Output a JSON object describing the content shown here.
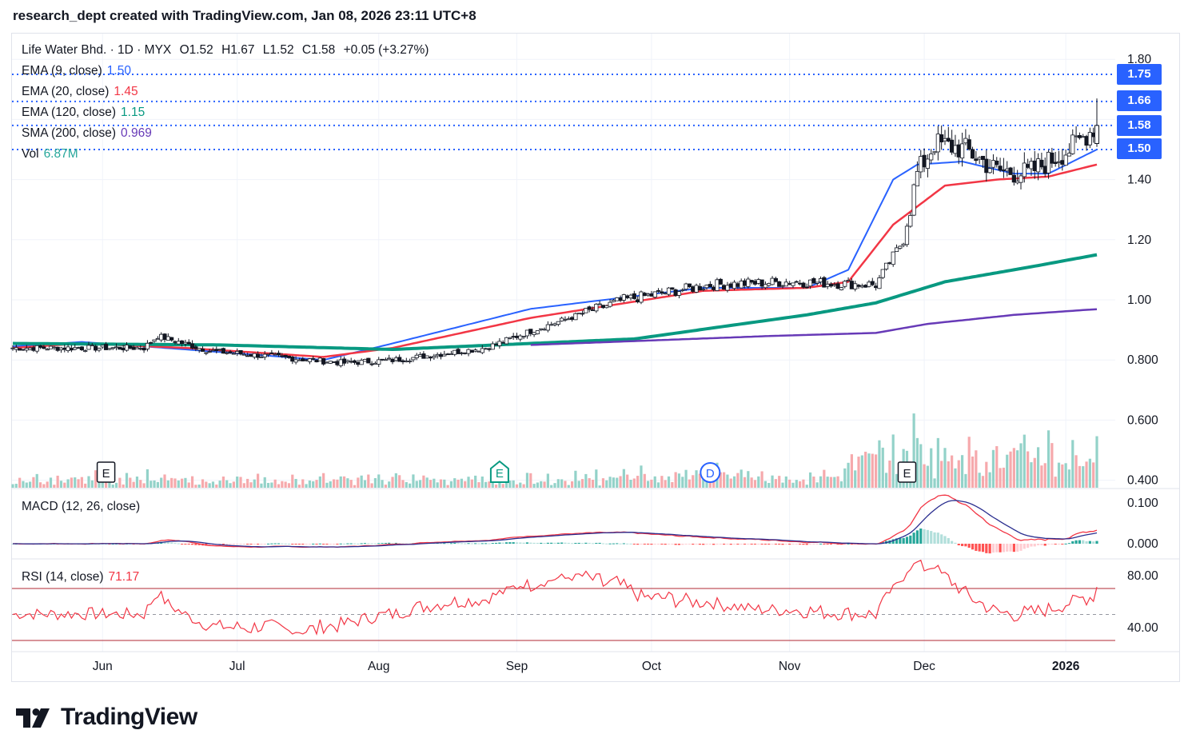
{
  "header": {
    "text": "research_dept created with TradingView.com, Jan 08, 2026 23:11 UTC+8"
  },
  "symbol": {
    "name": "Life Water Bhd.",
    "interval": "1D",
    "exchange": "MYX",
    "open": "O1.52",
    "high": "H1.67",
    "low": "L1.52",
    "close": "C1.58",
    "change": "+0.05 (+3.27%)"
  },
  "indicators": [
    {
      "label": "EMA (9, close)",
      "value": "1.50",
      "color": "#2962ff"
    },
    {
      "label": "EMA (20, close)",
      "value": "1.45",
      "color": "#f23645"
    },
    {
      "label": "EMA (120, close)",
      "value": "1.15",
      "color": "#089981"
    },
    {
      "label": "SMA (200, close)",
      "value": "0.969",
      "color": "#673ab7"
    },
    {
      "label": "Vol",
      "value": "6.87M",
      "color": "#26a69a"
    }
  ],
  "macd": {
    "label": "MACD (12, 26, close)"
  },
  "rsi": {
    "label": "RSI (14, close)",
    "value": "71.17"
  },
  "price_tags": [
    "1.75",
    "1.66",
    "1.58",
    "1.50"
  ],
  "event_markers": [
    {
      "letter": "E",
      "date": "2025-06-02",
      "style": "earnings"
    },
    {
      "letter": "E",
      "date": "2025-08-28",
      "style": "earnings-new"
    },
    {
      "letter": "D",
      "date": "2025-10-14",
      "style": "dividend"
    },
    {
      "letter": "E",
      "date": "2025-11-27",
      "style": "earnings"
    }
  ],
  "logo": {
    "text": "TradingView"
  },
  "chart_data": {
    "type": "candlestick",
    "title": "Life Water Bhd. · 1D · MYX",
    "x_axis": {
      "tick_labels": [
        "Jun",
        "Jul",
        "Aug",
        "Sep",
        "Oct",
        "Nov",
        "Dec",
        "2026"
      ],
      "tick_dates": [
        "2025-06-01",
        "2025-07-01",
        "2025-08-01",
        "2025-09-01",
        "2025-10-01",
        "2025-11-01",
        "2025-12-01",
        "2026-01-01"
      ]
    },
    "price_axis": {
      "ticks": [
        "1.80",
        "1.40",
        "1.20",
        "1.00",
        "0.800",
        "0.600",
        "0.400"
      ],
      "range": [
        0.4,
        1.8
      ]
    },
    "macd_axis": {
      "ticks": [
        "0.100",
        "0.000"
      ]
    },
    "rsi_axis": {
      "ticks": [
        "80.00",
        "40.00"
      ],
      "bands": [
        70,
        50,
        30
      ]
    },
    "horizontal_lines": [
      1.75,
      1.66,
      1.58,
      1.5
    ],
    "ohlc_keypoints": [
      {
        "date": "2025-05-12",
        "close": 0.84
      },
      {
        "date": "2025-06-10",
        "close": 0.84
      },
      {
        "date": "2025-06-13",
        "close": 0.88
      },
      {
        "date": "2025-06-25",
        "close": 0.83
      },
      {
        "date": "2025-07-25",
        "close": 0.79
      },
      {
        "date": "2025-08-05",
        "close": 0.8
      },
      {
        "date": "2025-08-25",
        "close": 0.84
      },
      {
        "date": "2025-09-05",
        "close": 0.9
      },
      {
        "date": "2025-09-25",
        "close": 1.0
      },
      {
        "date": "2025-10-14",
        "close": 1.05
      },
      {
        "date": "2025-11-01",
        "close": 1.06
      },
      {
        "date": "2025-11-20",
        "close": 1.05
      },
      {
        "date": "2025-11-26",
        "close": 1.2
      },
      {
        "date": "2025-11-29",
        "close": 1.42
      },
      {
        "date": "2025-12-03",
        "close": 1.52
      },
      {
        "date": "2025-12-10",
        "close": 1.5
      },
      {
        "date": "2025-12-17",
        "close": 1.43
      },
      {
        "date": "2025-12-24",
        "close": 1.42
      },
      {
        "date": "2026-01-02",
        "close": 1.5
      },
      {
        "date": "2026-01-08",
        "close": 1.58
      }
    ],
    "last_bar": {
      "open": 1.52,
      "high": 1.67,
      "low": 1.52,
      "close": 1.58,
      "volume": "6.87M"
    },
    "series": [
      {
        "name": "EMA (9, close)",
        "last": 1.5,
        "keypoints": [
          [
            0,
            0.845
          ],
          [
            20,
            0.86
          ],
          [
            50,
            0.835
          ],
          [
            90,
            0.8
          ],
          [
            110,
            0.855
          ],
          [
            150,
            0.97
          ],
          [
            200,
            1.04
          ],
          [
            230,
            1.04
          ],
          [
            242,
            1.1
          ],
          [
            255,
            1.4
          ],
          [
            262,
            1.45
          ],
          [
            275,
            1.46
          ],
          [
            290,
            1.42
          ],
          [
            300,
            1.42
          ],
          [
            314,
            1.5
          ]
        ]
      },
      {
        "name": "EMA (20, close)",
        "last": 1.45,
        "keypoints": [
          [
            0,
            0.84
          ],
          [
            20,
            0.855
          ],
          [
            50,
            0.84
          ],
          [
            90,
            0.81
          ],
          [
            110,
            0.84
          ],
          [
            150,
            0.94
          ],
          [
            200,
            1.03
          ],
          [
            230,
            1.04
          ],
          [
            242,
            1.06
          ],
          [
            255,
            1.25
          ],
          [
            270,
            1.38
          ],
          [
            285,
            1.4
          ],
          [
            300,
            1.41
          ],
          [
            314,
            1.45
          ]
        ]
      },
      {
        "name": "EMA (120, close)",
        "last": 1.15,
        "keypoints": [
          [
            0,
            0.855
          ],
          [
            60,
            0.85
          ],
          [
            110,
            0.835
          ],
          [
            180,
            0.87
          ],
          [
            230,
            0.95
          ],
          [
            250,
            0.99
          ],
          [
            270,
            1.06
          ],
          [
            295,
            1.11
          ],
          [
            314,
            1.15
          ]
        ]
      },
      {
        "name": "SMA (200, close)",
        "last": 0.969,
        "keypoints": [
          [
            150,
            0.85
          ],
          [
            220,
            0.88
          ],
          [
            250,
            0.89
          ],
          [
            265,
            0.92
          ],
          [
            290,
            0.95
          ],
          [
            314,
            0.969
          ]
        ]
      }
    ]
  }
}
